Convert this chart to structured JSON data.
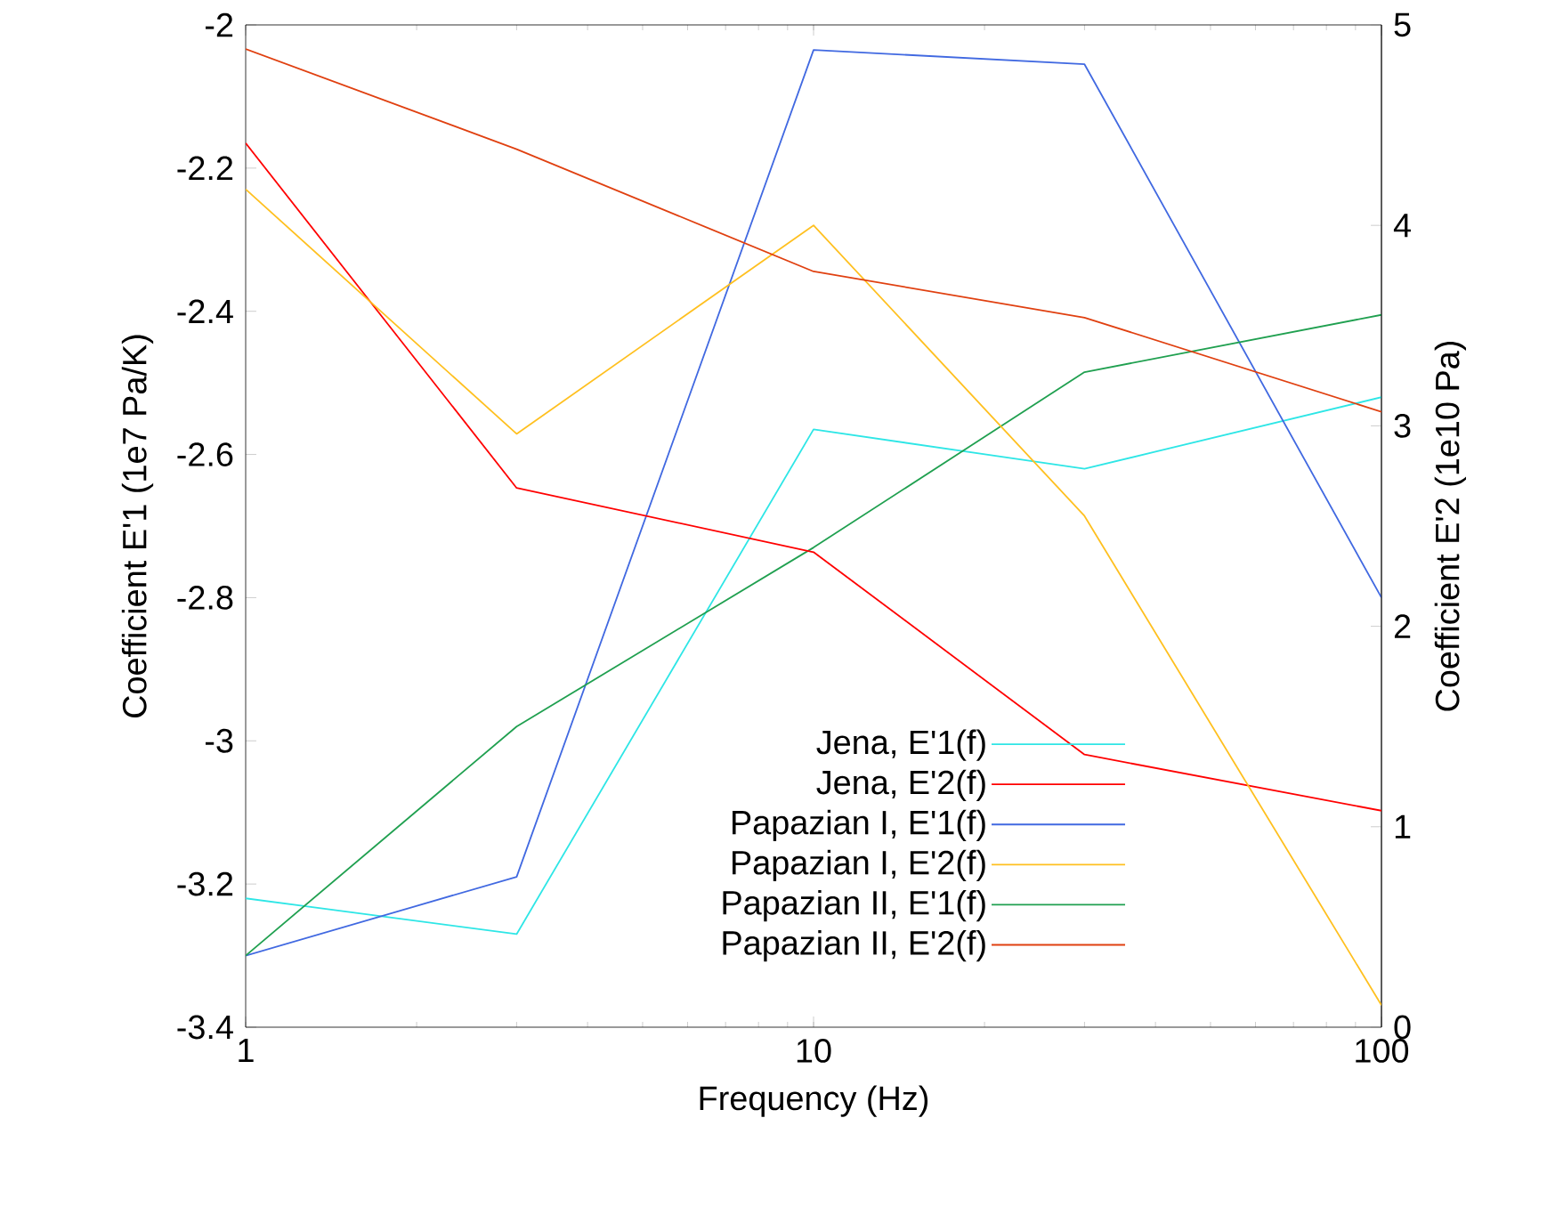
{
  "chart_data": {
    "type": "line",
    "xlabel": "Frequency (Hz)",
    "ylabel": "Coefficient E'1 (1e7 Pa/K)",
    "y2label": "Coefficient E'2 (1e10 Pa)",
    "x": [
      1,
      3,
      10,
      30,
      100
    ],
    "log": "x",
    "xlim": [
      1,
      100
    ],
    "xticks": [
      1,
      10,
      100
    ],
    "ylim": [
      -3.4,
      -2
    ],
    "yticks": [
      -3.4,
      -3.2,
      -3,
      -2.8,
      -2.6,
      -2.4,
      -2.2,
      -2
    ],
    "y2lim": [
      0,
      5
    ],
    "y2ticks": [
      0,
      1,
      2,
      3,
      4,
      5
    ],
    "legend": "bottom right",
    "grid": false,
    "series": [
      {
        "name": "Jena, E'1(f)",
        "color": "#2ee6e6",
        "values": [
          -3.22,
          -3.27,
          -2.565,
          -2.62,
          -2.52
        ]
      },
      {
        "name": "Jena, E'2(f)",
        "color": "#ff0000",
        "axis": "y2",
        "values": [
          4.41,
          2.69,
          2.37,
          1.36,
          1.08
        ]
      },
      {
        "name": "Papazian I, E'1(f)",
        "color": "#4169e1",
        "values": [
          -3.3,
          -3.19,
          -2.035,
          -2.055,
          -2.8
        ]
      },
      {
        "name": "Papazian I, E'2(f)",
        "color": "#ffc020",
        "axis": "y2",
        "values": [
          4.18,
          2.96,
          4.0,
          2.55,
          0.11
        ]
      },
      {
        "name": "Papazian II, E'1(f)",
        "color": "#20a050",
        "values": [
          -3.3,
          -2.98,
          -2.73,
          -2.485,
          -2.405
        ]
      },
      {
        "name": "Papazian II, E'2(f)",
        "color": "#e04010",
        "axis": "y2",
        "values": [
          4.88,
          4.38,
          3.77,
          3.54,
          3.07
        ]
      }
    ]
  }
}
